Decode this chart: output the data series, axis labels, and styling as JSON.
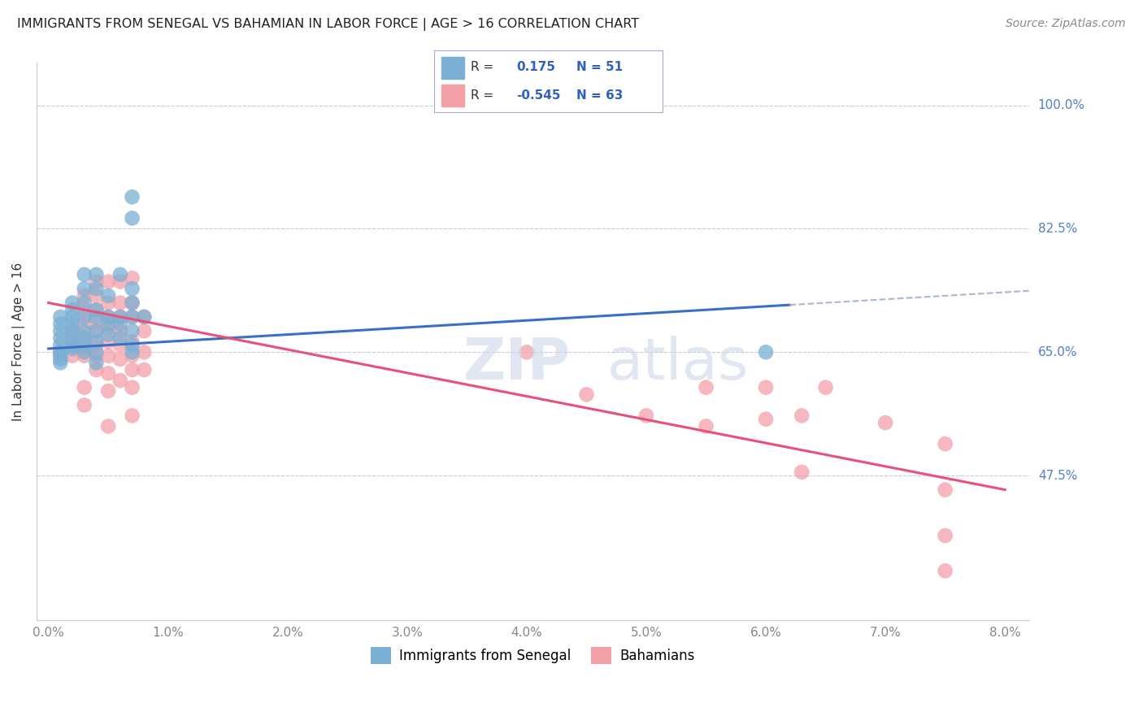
{
  "title": "IMMIGRANTS FROM SENEGAL VS BAHAMIAN IN LABOR FORCE | AGE > 16 CORRELATION CHART",
  "source": "Source: ZipAtlas.com",
  "ylabel": "In Labor Force | Age > 16",
  "ytick_labels": [
    "47.5%",
    "65.0%",
    "82.5%",
    "100.0%"
  ],
  "ytick_vals": [
    0.475,
    0.65,
    0.825,
    1.0
  ],
  "xtick_labels": [
    "0.0%",
    "1.0%",
    "2.0%",
    "3.0%",
    "4.0%",
    "5.0%",
    "6.0%",
    "7.0%",
    "8.0%"
  ],
  "xtick_vals": [
    0.0,
    0.01,
    0.02,
    0.03,
    0.04,
    0.05,
    0.06,
    0.07,
    0.08
  ],
  "xlim": [
    -0.001,
    0.082
  ],
  "ylim": [
    0.27,
    1.06
  ],
  "blue_R": "0.175",
  "blue_N": "51",
  "pink_R": "-0.545",
  "pink_N": "63",
  "blue_color": "#7bafd4",
  "pink_color": "#f4a0a8",
  "blue_line_color": "#3a6fc8",
  "pink_line_color": "#e8517a",
  "dashed_line_color": "#a8b8d0",
  "background_color": "#ffffff",
  "grid_color": "#c8c8d8",
  "right_axis_color": "#5080c8",
  "legend_text_color": "#3060c0",
  "blue_scatter": [
    [
      0.001,
      0.7
    ],
    [
      0.001,
      0.69
    ],
    [
      0.001,
      0.68
    ],
    [
      0.001,
      0.67
    ],
    [
      0.001,
      0.66
    ],
    [
      0.001,
      0.65
    ],
    [
      0.001,
      0.645
    ],
    [
      0.001,
      0.64
    ],
    [
      0.002,
      0.72
    ],
    [
      0.002,
      0.71
    ],
    [
      0.002,
      0.7
    ],
    [
      0.002,
      0.69
    ],
    [
      0.002,
      0.68
    ],
    [
      0.002,
      0.67
    ],
    [
      0.002,
      0.66
    ],
    [
      0.002,
      0.655
    ],
    [
      0.003,
      0.76
    ],
    [
      0.003,
      0.74
    ],
    [
      0.003,
      0.72
    ],
    [
      0.003,
      0.7
    ],
    [
      0.003,
      0.68
    ],
    [
      0.003,
      0.67
    ],
    [
      0.003,
      0.66
    ],
    [
      0.003,
      0.65
    ],
    [
      0.004,
      0.76
    ],
    [
      0.004,
      0.74
    ],
    [
      0.004,
      0.71
    ],
    [
      0.004,
      0.7
    ],
    [
      0.004,
      0.68
    ],
    [
      0.004,
      0.665
    ],
    [
      0.004,
      0.65
    ],
    [
      0.004,
      0.635
    ],
    [
      0.005,
      0.73
    ],
    [
      0.005,
      0.7
    ],
    [
      0.005,
      0.69
    ],
    [
      0.005,
      0.675
    ],
    [
      0.006,
      0.76
    ],
    [
      0.006,
      0.7
    ],
    [
      0.006,
      0.69
    ],
    [
      0.006,
      0.67
    ],
    [
      0.007,
      0.87
    ],
    [
      0.007,
      0.84
    ],
    [
      0.007,
      0.74
    ],
    [
      0.007,
      0.72
    ],
    [
      0.007,
      0.7
    ],
    [
      0.007,
      0.68
    ],
    [
      0.007,
      0.66
    ],
    [
      0.007,
      0.65
    ],
    [
      0.008,
      0.7
    ],
    [
      0.06,
      0.65
    ],
    [
      0.001,
      0.635
    ]
  ],
  "pink_scatter": [
    [
      0.001,
      0.65
    ],
    [
      0.002,
      0.68
    ],
    [
      0.002,
      0.665
    ],
    [
      0.002,
      0.645
    ],
    [
      0.003,
      0.73
    ],
    [
      0.003,
      0.71
    ],
    [
      0.003,
      0.69
    ],
    [
      0.003,
      0.67
    ],
    [
      0.003,
      0.655
    ],
    [
      0.003,
      0.645
    ],
    [
      0.003,
      0.6
    ],
    [
      0.003,
      0.575
    ],
    [
      0.004,
      0.75
    ],
    [
      0.004,
      0.73
    ],
    [
      0.004,
      0.71
    ],
    [
      0.004,
      0.695
    ],
    [
      0.004,
      0.68
    ],
    [
      0.004,
      0.66
    ],
    [
      0.004,
      0.645
    ],
    [
      0.004,
      0.625
    ],
    [
      0.005,
      0.75
    ],
    [
      0.005,
      0.72
    ],
    [
      0.005,
      0.7
    ],
    [
      0.005,
      0.685
    ],
    [
      0.005,
      0.665
    ],
    [
      0.005,
      0.645
    ],
    [
      0.005,
      0.62
    ],
    [
      0.005,
      0.595
    ],
    [
      0.005,
      0.545
    ],
    [
      0.006,
      0.75
    ],
    [
      0.006,
      0.72
    ],
    [
      0.006,
      0.7
    ],
    [
      0.006,
      0.68
    ],
    [
      0.006,
      0.66
    ],
    [
      0.006,
      0.64
    ],
    [
      0.006,
      0.61
    ],
    [
      0.007,
      0.755
    ],
    [
      0.007,
      0.72
    ],
    [
      0.007,
      0.7
    ],
    [
      0.007,
      0.665
    ],
    [
      0.007,
      0.645
    ],
    [
      0.007,
      0.625
    ],
    [
      0.007,
      0.6
    ],
    [
      0.007,
      0.56
    ],
    [
      0.008,
      0.7
    ],
    [
      0.008,
      0.68
    ],
    [
      0.008,
      0.65
    ],
    [
      0.008,
      0.625
    ],
    [
      0.04,
      0.65
    ],
    [
      0.045,
      0.59
    ],
    [
      0.05,
      0.56
    ],
    [
      0.055,
      0.6
    ],
    [
      0.055,
      0.545
    ],
    [
      0.06,
      0.6
    ],
    [
      0.06,
      0.555
    ],
    [
      0.063,
      0.56
    ],
    [
      0.063,
      0.48
    ],
    [
      0.065,
      0.6
    ],
    [
      0.07,
      0.55
    ],
    [
      0.075,
      0.52
    ],
    [
      0.075,
      0.455
    ],
    [
      0.075,
      0.39
    ],
    [
      0.075,
      0.34
    ]
  ],
  "blue_line": [
    [
      0.0,
      0.655
    ],
    [
      0.062,
      0.717
    ]
  ],
  "pink_line": [
    [
      0.0,
      0.72
    ],
    [
      0.08,
      0.455
    ]
  ],
  "dashed_line": [
    [
      0.062,
      0.717
    ],
    [
      0.082,
      0.737
    ]
  ]
}
